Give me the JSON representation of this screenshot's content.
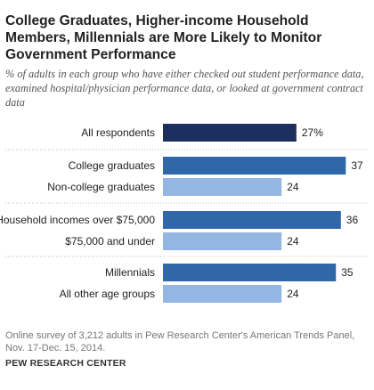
{
  "header": {
    "title": "College Graduates, Higher-income Household Members, Millennials are More Likely to Monitor Government Performance",
    "subtitle": "% of adults in each group who have either checked out student performance data, examined hospital/physician performance data, or looked at government contract data"
  },
  "chart_data": {
    "type": "bar",
    "orientation": "horizontal",
    "xlim": [
      0,
      40
    ],
    "groups": [
      {
        "rows": [
          {
            "label": "All respondents",
            "value": 27,
            "value_label": "27%",
            "color": "#1d2f5e"
          }
        ]
      },
      {
        "rows": [
          {
            "label": "College graduates",
            "value": 37,
            "value_label": "37",
            "color": "#2f67a8"
          },
          {
            "label": "Non-college graduates",
            "value": 24,
            "value_label": "24",
            "color": "#93b7e2"
          }
        ]
      },
      {
        "rows": [
          {
            "label": "Household incomes over $75,000",
            "value": 36,
            "value_label": "36",
            "color": "#2f67a8"
          },
          {
            "label": "$75,000 and under",
            "value": 24,
            "value_label": "24",
            "color": "#93b7e2"
          }
        ]
      },
      {
        "rows": [
          {
            "label": "Millennials",
            "value": 35,
            "value_label": "35",
            "color": "#2f67a8"
          },
          {
            "label": "All other age groups",
            "value": 24,
            "value_label": "24",
            "color": "#93b7e2"
          }
        ]
      }
    ]
  },
  "footer": {
    "note": "Online survey of 3,212 adults in Pew Research Center's American Trends Panel, Nov. 17-Dec. 15, 2014.",
    "source": "PEW RESEARCH CENTER"
  }
}
